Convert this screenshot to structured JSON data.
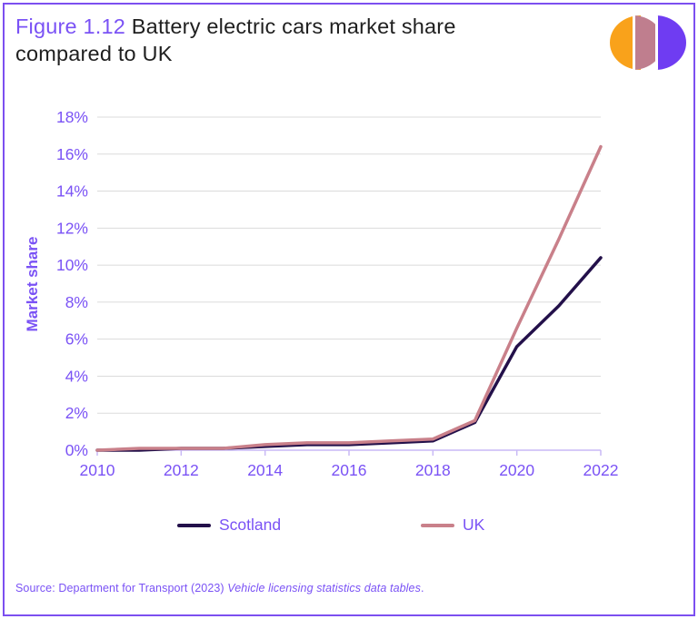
{
  "header": {
    "figure_label": "Figure 1.12",
    "title_line1": " Battery electric cars market share",
    "title_line2": "compared to UK"
  },
  "logo": {
    "description": "three-half-disc-arcs",
    "colors": {
      "orange": "#f9a21b",
      "rose": "#bf7e8e",
      "purple": "#6f3cf2"
    }
  },
  "colors": {
    "accent_purple": "#7a52f5",
    "frame_purple": "#7c4ff0",
    "axis_line": "#c9b9f6",
    "gridline": "#dbdbdb",
    "scotland_line": "#23104a",
    "uk_line": "#c9808a",
    "title_text": "#1f1f1f"
  },
  "chart_data": {
    "type": "line",
    "title": "Figure 1.12 Battery electric cars market share compared to UK",
    "xlabel": "",
    "ylabel": "Market share",
    "x": [
      2010,
      2011,
      2012,
      2013,
      2014,
      2015,
      2016,
      2017,
      2018,
      2019,
      2020,
      2021,
      2022
    ],
    "x_tick_labels": [
      "2010",
      "2012",
      "2014",
      "2016",
      "2018",
      "2020",
      "2022"
    ],
    "ylim": [
      0,
      18
    ],
    "y_tick_step": 2,
    "y_tick_suffix": "%",
    "grid": "horizontal",
    "legend_position": "bottom",
    "tick_label_color": "#7a52f5",
    "axis_color": "#c9b9f6",
    "grid_color": "#dbdbdb",
    "series": [
      {
        "name": "Scotland",
        "color": "#23104a",
        "values": [
          0.0,
          0.0,
          0.1,
          0.1,
          0.2,
          0.3,
          0.3,
          0.4,
          0.5,
          1.5,
          5.6,
          7.8,
          10.4
        ]
      },
      {
        "name": "UK",
        "color": "#c9808a",
        "values": [
          0.0,
          0.1,
          0.1,
          0.1,
          0.3,
          0.4,
          0.4,
          0.5,
          0.6,
          1.6,
          6.6,
          11.4,
          16.4
        ]
      }
    ]
  },
  "source": {
    "prefix": "Source: Department for Transport (2023) ",
    "italic": "Vehicle licensing statistics data tables",
    "suffix": "."
  }
}
